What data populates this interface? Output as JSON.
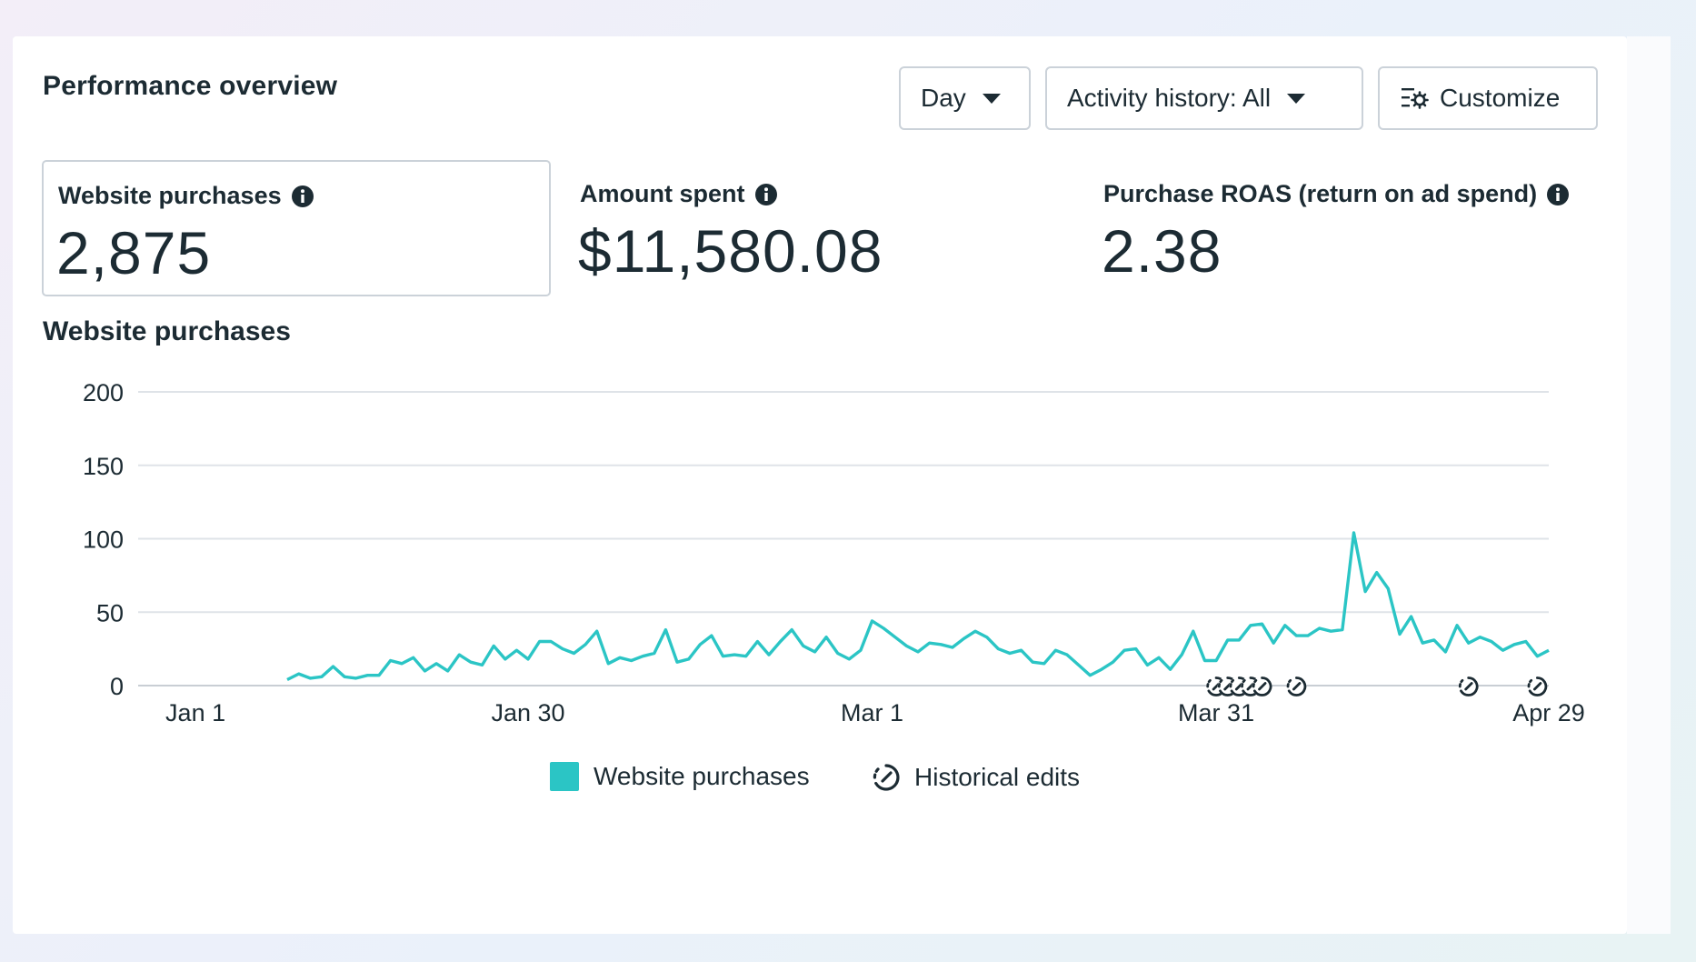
{
  "header": {
    "title": "Performance overview",
    "day_label": "Day",
    "activity_label": "Activity history: All",
    "customize_label": "Customize"
  },
  "metrics": [
    {
      "label": "Website purchases",
      "value": "2,875"
    },
    {
      "label": "Amount spent",
      "value": "$11,580.08"
    },
    {
      "label": "Purchase ROAS (return on ad spend)",
      "value": "2.38"
    }
  ],
  "chart_section": {
    "title": "Website purchases"
  },
  "legend": {
    "series_label": "Website purchases",
    "edits_label": "Historical edits"
  },
  "colors": {
    "series": "#2bc5c5",
    "grid": "#dfe3e8"
  },
  "icons": [
    "info-icon",
    "caret-down-icon",
    "customize-icon",
    "historical-edit-icon"
  ],
  "chart_data": {
    "type": "line",
    "xlabel": "",
    "ylabel": "",
    "ylim": [
      0,
      200
    ],
    "y_ticks": [
      0,
      50,
      100,
      150,
      200
    ],
    "x_ticks": [
      "Jan 1",
      "Jan 30",
      "Mar 1",
      "Mar 31",
      "Apr 29"
    ],
    "x_tick_days": [
      0,
      29,
      59,
      89,
      118
    ],
    "xlim_days": [
      -5,
      118
    ],
    "grid": true,
    "legend_position": "bottom",
    "series": [
      {
        "name": "Website purchases",
        "start_day": 8,
        "values": [
          4,
          8,
          5,
          6,
          13,
          6,
          5,
          7,
          7,
          17,
          15,
          19,
          10,
          15,
          10,
          21,
          16,
          14,
          27,
          18,
          24,
          18,
          30,
          30,
          25,
          22,
          28,
          37,
          15,
          19,
          17,
          20,
          22,
          38,
          16,
          18,
          28,
          34,
          20,
          21,
          20,
          30,
          21,
          30,
          38,
          27,
          23,
          33,
          22,
          18,
          24,
          44,
          39,
          33,
          27,
          23,
          29,
          28,
          26,
          32,
          37,
          33,
          25,
          22,
          24,
          16,
          15,
          24,
          21,
          14,
          7,
          11,
          16,
          24,
          25,
          14,
          19,
          11,
          21,
          37,
          17,
          17,
          31,
          31,
          41,
          42,
          29,
          41,
          34,
          34,
          39,
          37,
          38,
          104,
          64,
          77,
          66,
          35,
          47,
          29,
          31,
          23,
          41,
          29,
          33,
          30,
          24,
          28,
          30,
          20,
          24
        ]
      }
    ],
    "historical_edit_days": [
      89,
      90,
      91,
      92,
      93,
      96,
      111,
      117
    ]
  }
}
